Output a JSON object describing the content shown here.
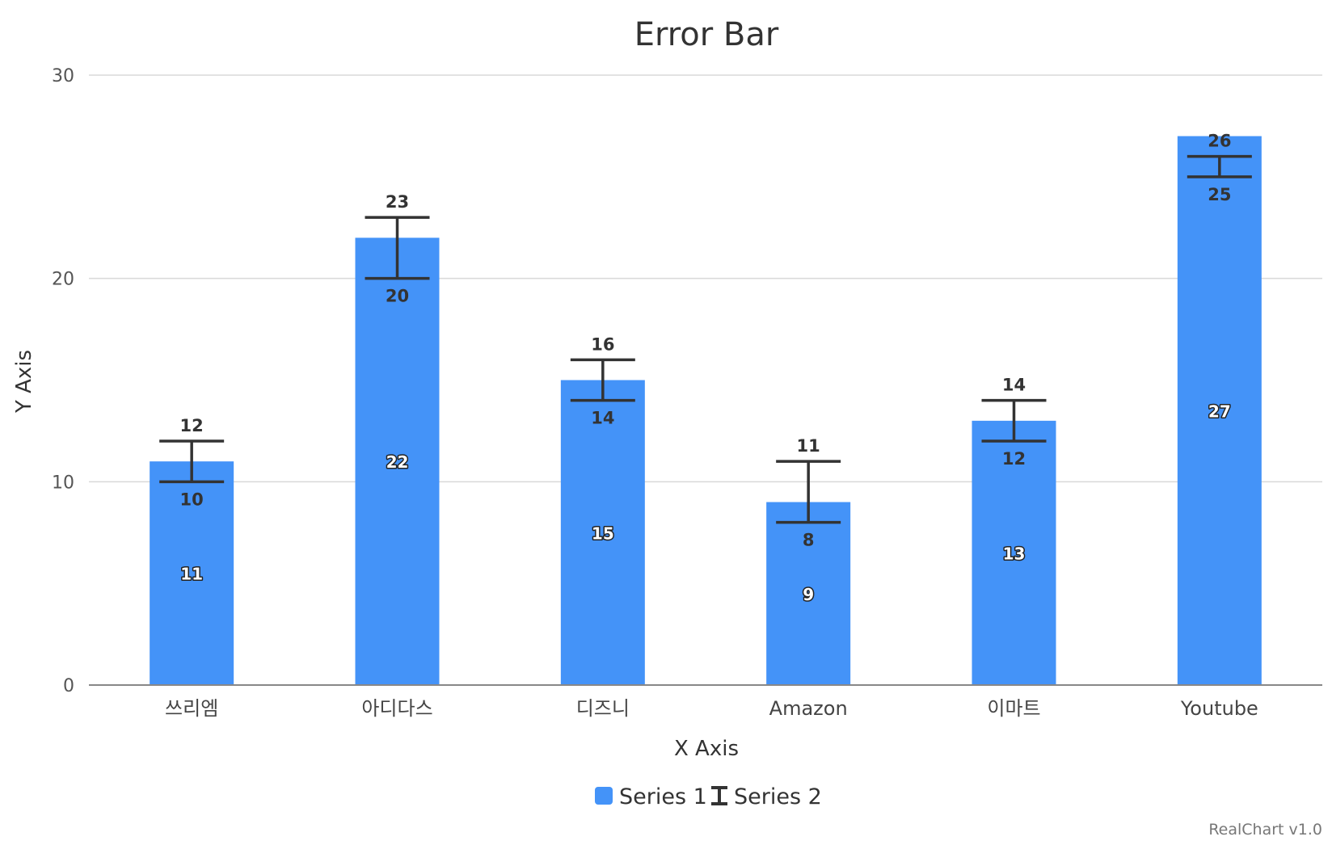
{
  "chart_data": {
    "type": "bar",
    "title": "Error Bar",
    "xlabel": "X Axis",
    "ylabel": "Y Axis",
    "ylim": [
      0,
      30
    ],
    "yticks": [
      0,
      10,
      20,
      30
    ],
    "grid": true,
    "legend_position": "bottom",
    "categories": [
      "쓰리엠",
      "아디다스",
      "디즈니",
      "Amazon",
      "이마트",
      "Youtube"
    ],
    "series": [
      {
        "name": "Series 1",
        "kind": "bar",
        "color": "#4493f8",
        "values": [
          11,
          22,
          15,
          9,
          13,
          27
        ]
      },
      {
        "name": "Series 2",
        "kind": "errorbar",
        "color": "#333333",
        "low": [
          10,
          20,
          14,
          8,
          12,
          25
        ],
        "high": [
          12,
          23,
          16,
          11,
          14,
          26
        ]
      }
    ],
    "credits": "RealChart v1.0"
  }
}
